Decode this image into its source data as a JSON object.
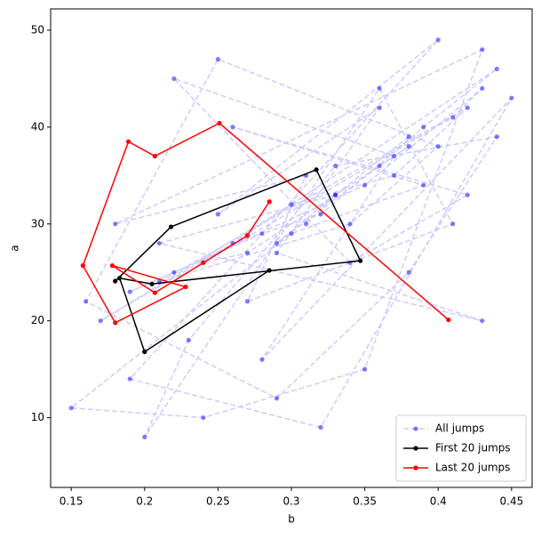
{
  "chart_data": {
    "type": "line",
    "xlabel": "b",
    "ylabel": "a",
    "xlim": [
      0.136,
      0.464
    ],
    "ylim": [
      2.8,
      52.2
    ],
    "xticks": [
      0.15,
      0.2,
      0.25,
      0.3,
      0.35,
      0.4,
      0.45
    ],
    "yticks": [
      10,
      20,
      30,
      40,
      50
    ],
    "legend": "lower right",
    "series": [
      {
        "name": "All jumps",
        "color": "#ccccff",
        "marker_color": "#0000ff",
        "linestyle": "dashed",
        "x": [
          0.31,
          0.33,
          0.29,
          0.36,
          0.38,
          0.27,
          0.24,
          0.41,
          0.43,
          0.35,
          0.22,
          0.19,
          0.28,
          0.32,
          0.39,
          0.44,
          0.26,
          0.17,
          0.3,
          0.37,
          0.42,
          0.21,
          0.34,
          0.4,
          0.25,
          0.16,
          0.29,
          0.38,
          0.44,
          0.33,
          0.23,
          0.2,
          0.36,
          0.41,
          0.27,
          0.31,
          0.18,
          0.43,
          0.35,
          0.24,
          0.15,
          0.3,
          0.39,
          0.26,
          0.42,
          0.34,
          0.22,
          0.37,
          0.28,
          0.45,
          0.32,
          0.19,
          0.4,
          0.25,
          0.36,
          0.29,
          0.43,
          0.21,
          0.33,
          0.38
        ],
        "values": [
          30,
          33,
          28,
          36,
          38,
          27,
          26,
          41,
          44,
          34,
          25,
          23,
          29,
          31,
          40,
          46,
          28,
          20,
          32,
          35,
          42,
          24,
          30,
          38,
          47,
          22,
          12,
          25,
          39,
          36,
          18,
          8,
          44,
          30,
          22,
          35,
          30,
          48,
          15,
          10,
          11,
          29,
          34,
          40,
          33,
          26,
          45,
          37,
          16,
          43,
          9,
          14,
          49,
          31,
          42,
          27,
          20,
          28,
          33,
          39
        ]
      },
      {
        "name": "First 20 jumps",
        "color": "#000000",
        "marker_color": "#000000",
        "linestyle": "solid",
        "x": [
          0.285,
          0.2,
          0.183,
          0.205,
          0.347,
          0.317,
          0.218,
          0.18
        ],
        "values": [
          25.2,
          16.8,
          24.4,
          23.8,
          26.2,
          35.6,
          29.7,
          24.1
        ]
      },
      {
        "name": "Last 20 jumps",
        "color": "#ff0000",
        "marker_color": "#ff0000",
        "linestyle": "solid",
        "x": [
          0.285,
          0.27,
          0.24,
          0.207,
          0.178,
          0.228,
          0.18,
          0.158,
          0.189,
          0.207,
          0.251,
          0.407
        ],
        "values": [
          32.3,
          28.8,
          26.0,
          22.9,
          25.7,
          23.5,
          19.8,
          25.7,
          38.5,
          37.0,
          40.4,
          20.1
        ]
      }
    ]
  }
}
